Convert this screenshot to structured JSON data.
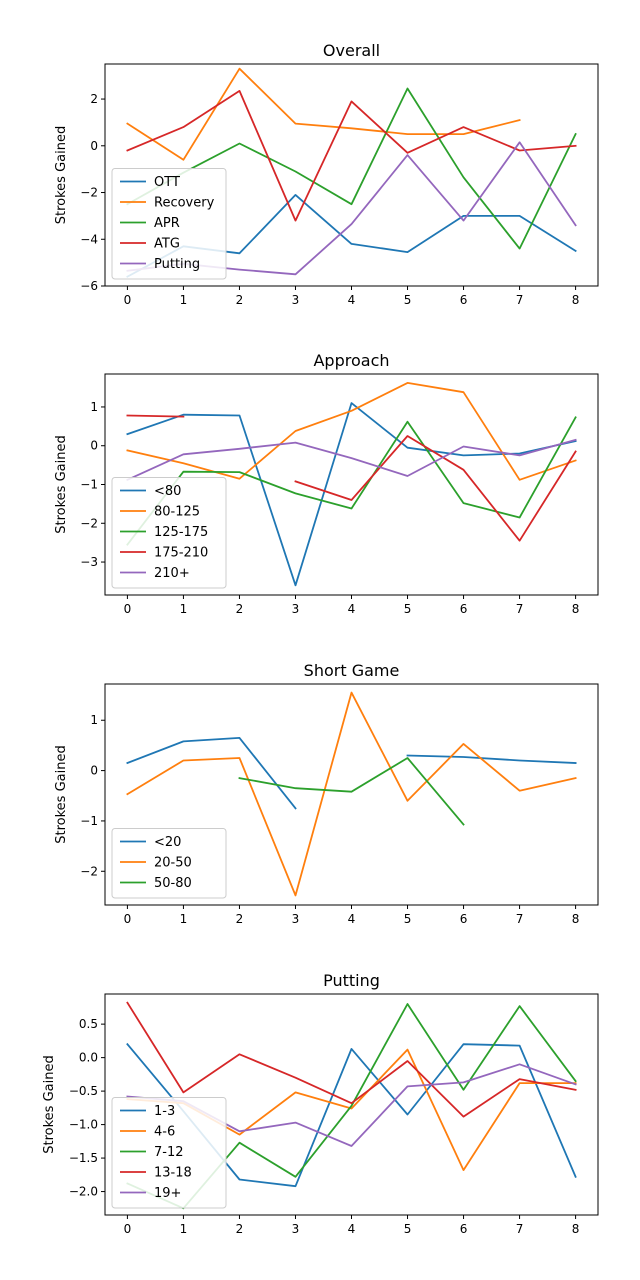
{
  "chart_data": [
    {
      "type": "line",
      "title": "Overall",
      "xlabel": "",
      "ylabel": "Strokes Gained",
      "x": [
        0,
        1,
        2,
        3,
        4,
        5,
        6,
        7,
        8
      ],
      "xlim": [
        -0.4,
        8.4
      ],
      "ylim": [
        -6,
        3.5
      ],
      "xticks": [
        0,
        1,
        2,
        3,
        4,
        5,
        6,
        7,
        8
      ],
      "yticks": [
        -6,
        -4,
        -2,
        0,
        2
      ],
      "ytick_labels": [
        "−6",
        "−4",
        "−2",
        "0",
        "2"
      ],
      "legend": "lower-left",
      "series": [
        {
          "name": "OTT",
          "color": "#1f77b4",
          "values": [
            -5.6,
            -4.3,
            -4.6,
            -2.1,
            -4.2,
            -4.55,
            -3.0,
            -3.0,
            -4.5
          ]
        },
        {
          "name": "Recovery",
          "color": "#ff7f0e",
          "values": [
            0.95,
            -0.6,
            3.3,
            0.95,
            0.75,
            0.5,
            0.5,
            1.1,
            null
          ]
        },
        {
          "name": "APR",
          "color": "#2ca02c",
          "values": [
            -2.5,
            -1.15,
            0.1,
            -1.1,
            -2.5,
            2.45,
            -1.35,
            -4.4,
            0.5
          ]
        },
        {
          "name": "ATG",
          "color": "#d62728",
          "values": [
            -0.2,
            0.8,
            2.35,
            -3.2,
            1.9,
            -0.3,
            0.8,
            -0.2,
            0.0
          ]
        },
        {
          "name": "Putting",
          "color": "#9467bd",
          "values": [
            -5.35,
            -5.05,
            -5.3,
            -5.5,
            -3.35,
            -0.4,
            -3.2,
            0.15,
            -3.4
          ]
        }
      ]
    },
    {
      "type": "line",
      "title": "Approach",
      "xlabel": "",
      "ylabel": "Strokes Gained",
      "x": [
        0,
        1,
        2,
        3,
        4,
        5,
        6,
        7,
        8
      ],
      "xlim": [
        -0.4,
        8.4
      ],
      "ylim": [
        -3.85,
        1.85
      ],
      "xticks": [
        0,
        1,
        2,
        3,
        4,
        5,
        6,
        7,
        8
      ],
      "yticks": [
        -3,
        -2,
        -1,
        0,
        1
      ],
      "ytick_labels": [
        "−3",
        "−2",
        "−1",
        "0",
        "1"
      ],
      "legend": "lower-left",
      "series": [
        {
          "name": "<80",
          "color": "#1f77b4",
          "values": [
            0.3,
            0.8,
            0.78,
            -3.6,
            1.1,
            -0.05,
            -0.25,
            -0.2,
            0.12
          ]
        },
        {
          "name": "80-125",
          "color": "#ff7f0e",
          "values": [
            -0.12,
            -0.45,
            -0.85,
            0.38,
            0.9,
            1.62,
            1.38,
            -0.88,
            -0.38
          ]
        },
        {
          "name": "125-175",
          "color": "#2ca02c",
          "values": [
            -2.55,
            -0.67,
            -0.68,
            -1.23,
            -1.62,
            0.62,
            -1.48,
            -1.85,
            0.73
          ]
        },
        {
          "name": "175-210",
          "color": "#d62728",
          "values": [
            0.78,
            0.75,
            null,
            -0.92,
            -1.4,
            0.25,
            -0.62,
            -2.45,
            -0.15
          ]
        },
        {
          "name": "210+",
          "color": "#9467bd",
          "values": [
            -0.88,
            -0.22,
            -0.08,
            0.08,
            -0.32,
            -0.78,
            -0.02,
            -0.25,
            0.15
          ]
        }
      ]
    },
    {
      "type": "line",
      "title": "Short Game",
      "xlabel": "",
      "ylabel": "Strokes Gained",
      "x": [
        0,
        1,
        2,
        3,
        4,
        5,
        6,
        7,
        8
      ],
      "xlim": [
        -0.4,
        8.4
      ],
      "ylim": [
        -2.67,
        1.72
      ],
      "xticks": [
        0,
        1,
        2,
        3,
        4,
        5,
        6,
        7,
        8
      ],
      "yticks": [
        -2,
        -1,
        0,
        1
      ],
      "ytick_labels": [
        "−2",
        "−1",
        "0",
        "1"
      ],
      "legend": "lower-left",
      "series": [
        {
          "name": "<20",
          "color": "#1f77b4",
          "values": [
            0.15,
            0.58,
            0.65,
            -0.75,
            null,
            0.3,
            0.27,
            0.2,
            0.15
          ]
        },
        {
          "name": "20-50",
          "color": "#ff7f0e",
          "values": [
            -0.47,
            0.2,
            0.25,
            -2.48,
            1.55,
            -0.6,
            0.53,
            -0.4,
            -0.15
          ]
        },
        {
          "name": "50-80",
          "color": "#2ca02c",
          "values": [
            null,
            null,
            -0.15,
            -0.35,
            -0.42,
            0.25,
            -1.07,
            null,
            null
          ]
        }
      ]
    },
    {
      "type": "line",
      "title": "Putting",
      "xlabel": "",
      "ylabel": "Strokes Gained",
      "x": [
        0,
        1,
        2,
        3,
        4,
        5,
        6,
        7,
        8
      ],
      "xlim": [
        -0.4,
        8.4
      ],
      "ylim": [
        -2.35,
        0.95
      ],
      "xticks": [
        0,
        1,
        2,
        3,
        4,
        5,
        6,
        7,
        8
      ],
      "yticks": [
        -2.0,
        -1.5,
        -1.0,
        -0.5,
        0.0,
        0.5
      ],
      "ytick_labels": [
        "−2.0",
        "−1.5",
        "−1.0",
        "−0.5",
        "0.0",
        "0.5"
      ],
      "legend": "lower-left",
      "series": [
        {
          "name": "1-3",
          "color": "#1f77b4",
          "values": [
            0.2,
            -0.8,
            -1.82,
            -1.92,
            0.13,
            -0.85,
            0.2,
            0.18,
            -1.78
          ]
        },
        {
          "name": "4-6",
          "color": "#ff7f0e",
          "values": [
            -0.62,
            -0.68,
            -1.15,
            -0.52,
            -0.76,
            0.12,
            -1.68,
            -0.38,
            -0.38
          ]
        },
        {
          "name": "7-12",
          "color": "#2ca02c",
          "values": [
            -1.88,
            -2.25,
            -1.27,
            -1.78,
            -0.72,
            0.8,
            -0.48,
            0.77,
            -0.35
          ]
        },
        {
          "name": "13-18",
          "color": "#d62728",
          "values": [
            0.82,
            -0.52,
            0.05,
            -0.3,
            -0.68,
            -0.05,
            -0.88,
            -0.32,
            -0.48
          ]
        },
        {
          "name": "19+",
          "color": "#9467bd",
          "values": [
            -0.58,
            -0.65,
            -1.1,
            -0.97,
            -1.32,
            -0.43,
            -0.37,
            -0.1,
            -0.4
          ]
        }
      ]
    }
  ]
}
